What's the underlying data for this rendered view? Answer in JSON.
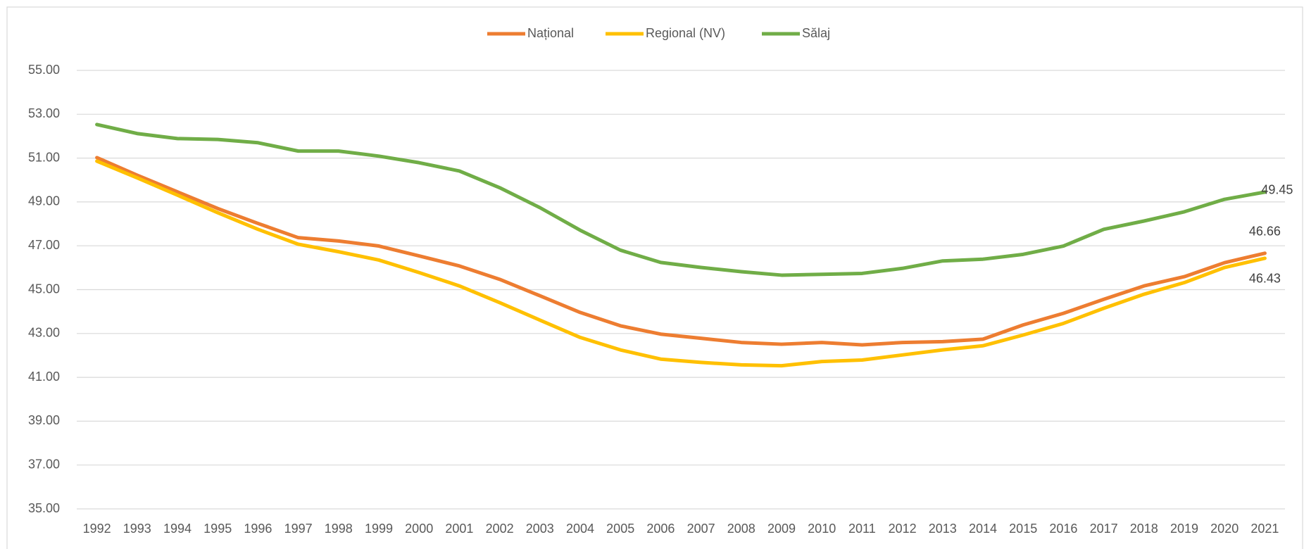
{
  "chart_data": {
    "type": "line",
    "categories": [
      "1992",
      "1993",
      "1994",
      "1995",
      "1996",
      "1997",
      "1998",
      "1999",
      "2000",
      "2001",
      "2002",
      "2003",
      "2004",
      "2005",
      "2006",
      "2007",
      "2008",
      "2009",
      "2010",
      "2011",
      "2012",
      "2013",
      "2014",
      "2015",
      "2016",
      "2017",
      "2018",
      "2019",
      "2020",
      "2021"
    ],
    "series": [
      {
        "name": "Național",
        "color": "#ED7D31",
        "values": [
          51.02,
          50.22,
          49.46,
          48.7,
          48.02,
          47.37,
          47.22,
          46.99,
          46.54,
          46.08,
          45.47,
          44.72,
          43.96,
          43.35,
          42.97,
          42.78,
          42.59,
          42.51,
          42.59,
          42.48,
          42.59,
          42.63,
          42.74,
          43.39,
          43.92,
          44.56,
          45.17,
          45.59,
          46.23,
          46.66
        ],
        "value_labels": [
          null,
          null,
          null,
          null,
          null,
          null,
          null,
          null,
          null,
          null,
          null,
          null,
          null,
          null,
          null,
          null,
          null,
          null,
          null,
          null,
          null,
          null,
          null,
          null,
          null,
          null,
          null,
          null,
          null,
          "46.66"
        ]
      },
      {
        "name": "Regional (NV)",
        "color": "#FFC000",
        "values": [
          50.86,
          50.1,
          49.31,
          48.51,
          47.75,
          47.07,
          46.73,
          46.35,
          45.78,
          45.17,
          44.41,
          43.61,
          42.82,
          42.25,
          41.83,
          41.68,
          41.57,
          41.53,
          41.72,
          41.79,
          42.02,
          42.25,
          42.44,
          42.93,
          43.46,
          44.15,
          44.79,
          45.32,
          46.01,
          46.43
        ],
        "value_labels": [
          null,
          null,
          null,
          null,
          null,
          null,
          null,
          null,
          null,
          null,
          null,
          null,
          null,
          null,
          null,
          null,
          null,
          null,
          null,
          null,
          null,
          null,
          null,
          null,
          null,
          null,
          null,
          null,
          null,
          "46.43"
        ]
      },
      {
        "name": "Sălaj",
        "color": "#70AD47",
        "values": [
          52.53,
          52.12,
          51.89,
          51.85,
          51.7,
          51.32,
          51.32,
          51.09,
          50.79,
          50.41,
          49.65,
          48.74,
          47.71,
          46.8,
          46.24,
          46.01,
          45.82,
          45.66,
          45.7,
          45.74,
          45.97,
          46.31,
          46.39,
          46.61,
          46.99,
          47.75,
          48.13,
          48.55,
          49.12,
          49.45
        ],
        "value_labels": [
          null,
          null,
          null,
          null,
          null,
          null,
          null,
          null,
          null,
          null,
          null,
          null,
          null,
          null,
          null,
          null,
          null,
          null,
          null,
          null,
          null,
          null,
          null,
          null,
          null,
          null,
          null,
          null,
          null,
          "49.45"
        ]
      }
    ],
    "ylim": [
      35,
      55
    ],
    "yticks": [
      {
        "value": 35,
        "label": "35.00"
      },
      {
        "value": 37,
        "label": "37.00"
      },
      {
        "value": 39,
        "label": "39.00"
      },
      {
        "value": 41,
        "label": "41.00"
      },
      {
        "value": 43,
        "label": "43.00"
      },
      {
        "value": 45,
        "label": "45.00"
      },
      {
        "value": 47,
        "label": "47.00"
      },
      {
        "value": 49,
        "label": "49.00"
      },
      {
        "value": 51,
        "label": "51.00"
      },
      {
        "value": 53,
        "label": "53.00"
      },
      {
        "value": 55,
        "label": "55.00"
      }
    ],
    "grid": true,
    "legend": "top"
  }
}
